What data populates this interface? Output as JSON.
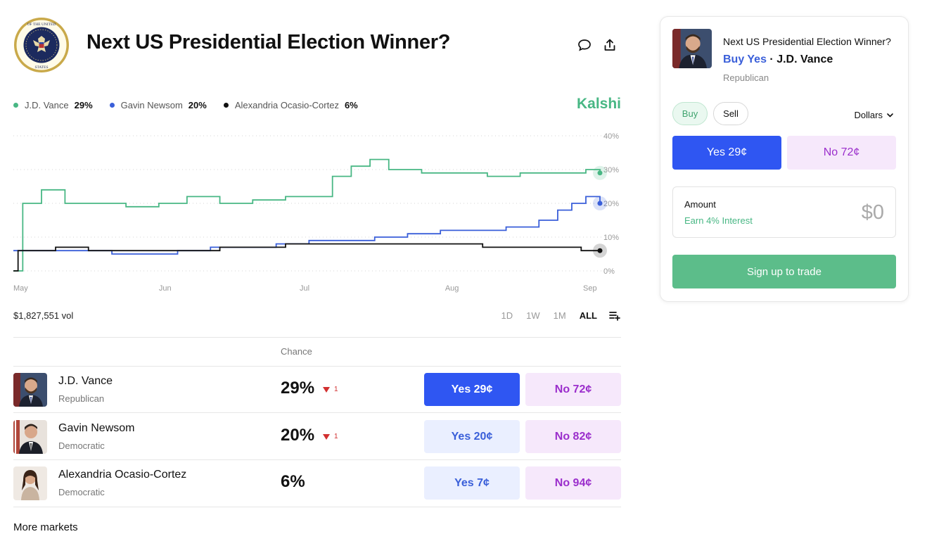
{
  "header": {
    "title": "Next US Presidential Election Winner?",
    "seal_text": "SEAL OF THE PRESIDENT OF THE UNITED STATES"
  },
  "legend": [
    {
      "name": "J.D. Vance",
      "pct": "29%",
      "color": "#48b784"
    },
    {
      "name": "Gavin Newsom",
      "pct": "20%",
      "color": "#3a5fd9"
    },
    {
      "name": "Alexandria Ocasio-Cortez",
      "pct": "6%",
      "color": "#111111"
    }
  ],
  "brand": "Kalshi",
  "chart_data": {
    "type": "line",
    "y_ticks": [
      "40%",
      "30%",
      "20%",
      "10%",
      "0%"
    ],
    "x_ticks": [
      "May",
      "Jun",
      "Jul",
      "Aug",
      "Sep"
    ],
    "ylim": [
      0,
      40
    ],
    "grid": true,
    "series": [
      {
        "name": "J.D. Vance",
        "color": "#48b784",
        "x": [
          "May 1",
          "May 3",
          "May 7",
          "May 12",
          "May 18",
          "May 25",
          "Jun 1",
          "Jun 7",
          "Jun 14",
          "Jun 21",
          "Jun 28",
          "Jul 4",
          "Jul 8",
          "Jul 12",
          "Jul 16",
          "Jul 20",
          "Jul 27",
          "Aug 3",
          "Aug 10",
          "Aug 17",
          "Aug 24",
          "Aug 31",
          "Sep 3"
        ],
        "values": [
          0,
          20,
          24,
          20,
          20,
          19,
          20,
          22,
          20,
          21,
          22,
          22,
          28,
          31,
          33,
          30,
          29,
          29,
          28,
          29,
          29,
          30,
          29
        ]
      },
      {
        "name": "Gavin Newsom",
        "color": "#3a5fd9",
        "x": [
          "May 1",
          "May 8",
          "May 15",
          "May 22",
          "May 29",
          "Jun 5",
          "Jun 12",
          "Jun 19",
          "Jun 26",
          "Jul 3",
          "Jul 10",
          "Jul 17",
          "Jul 24",
          "Jul 31",
          "Aug 7",
          "Aug 14",
          "Aug 21",
          "Aug 25",
          "Aug 28",
          "Aug 31",
          "Sep 3"
        ],
        "values": [
          6,
          6,
          6,
          5,
          5,
          6,
          7,
          7,
          8,
          9,
          9,
          10,
          11,
          12,
          12,
          13,
          15,
          18,
          20,
          22,
          20
        ]
      },
      {
        "name": "Alexandria Ocasio-Cortez",
        "color": "#111111",
        "x": [
          "May 1",
          "May 2",
          "May 4",
          "May 10",
          "May 17",
          "May 24",
          "May 31",
          "Jun 7",
          "Jun 14",
          "Jun 21",
          "Jun 28",
          "Jul 5",
          "Jul 12",
          "Jul 19",
          "Jul 26",
          "Aug 2",
          "Aug 9",
          "Aug 16",
          "Aug 23",
          "Aug 30",
          "Sep 3"
        ],
        "values": [
          0,
          6,
          6,
          7,
          6,
          6,
          6,
          6,
          7,
          7,
          8,
          8,
          8,
          8,
          8,
          8,
          7,
          7,
          7,
          6,
          6
        ]
      }
    ],
    "x_domain": [
      "May 1",
      "Sep 3"
    ]
  },
  "volume": "$1,827,551 vol",
  "ranges": [
    "1D",
    "1W",
    "1M",
    "ALL"
  ],
  "table": {
    "chance_header": "Chance",
    "rows": [
      {
        "name": "J.D. Vance",
        "party": "Republican",
        "chance": "29%",
        "delta": "1",
        "yes": "Yes 29¢",
        "no": "No 72¢"
      },
      {
        "name": "Gavin Newsom",
        "party": "Democratic",
        "chance": "20%",
        "delta": "1",
        "yes": "Yes 20¢",
        "no": "No 82¢"
      },
      {
        "name": "Alexandria Ocasio-Cortez",
        "party": "Democratic",
        "chance": "6%",
        "delta": "",
        "yes": "Yes 7¢",
        "no": "No 94¢"
      }
    ]
  },
  "more_markets": "More markets",
  "panel": {
    "title": "Next US Presidential Election Winner?",
    "buy_label": "Buy Yes",
    "separator": " · ",
    "candidate": "J.D. Vance",
    "party": "Republican",
    "seg_buy": "Buy",
    "seg_sell": "Sell",
    "currency": "Dollars",
    "yes_btn": "Yes 29¢",
    "no_btn": "No 72¢",
    "amount_label": "Amount",
    "amount_earn": "Earn 4% Interest",
    "amount_value": "$0",
    "signup": "Sign up to trade"
  }
}
